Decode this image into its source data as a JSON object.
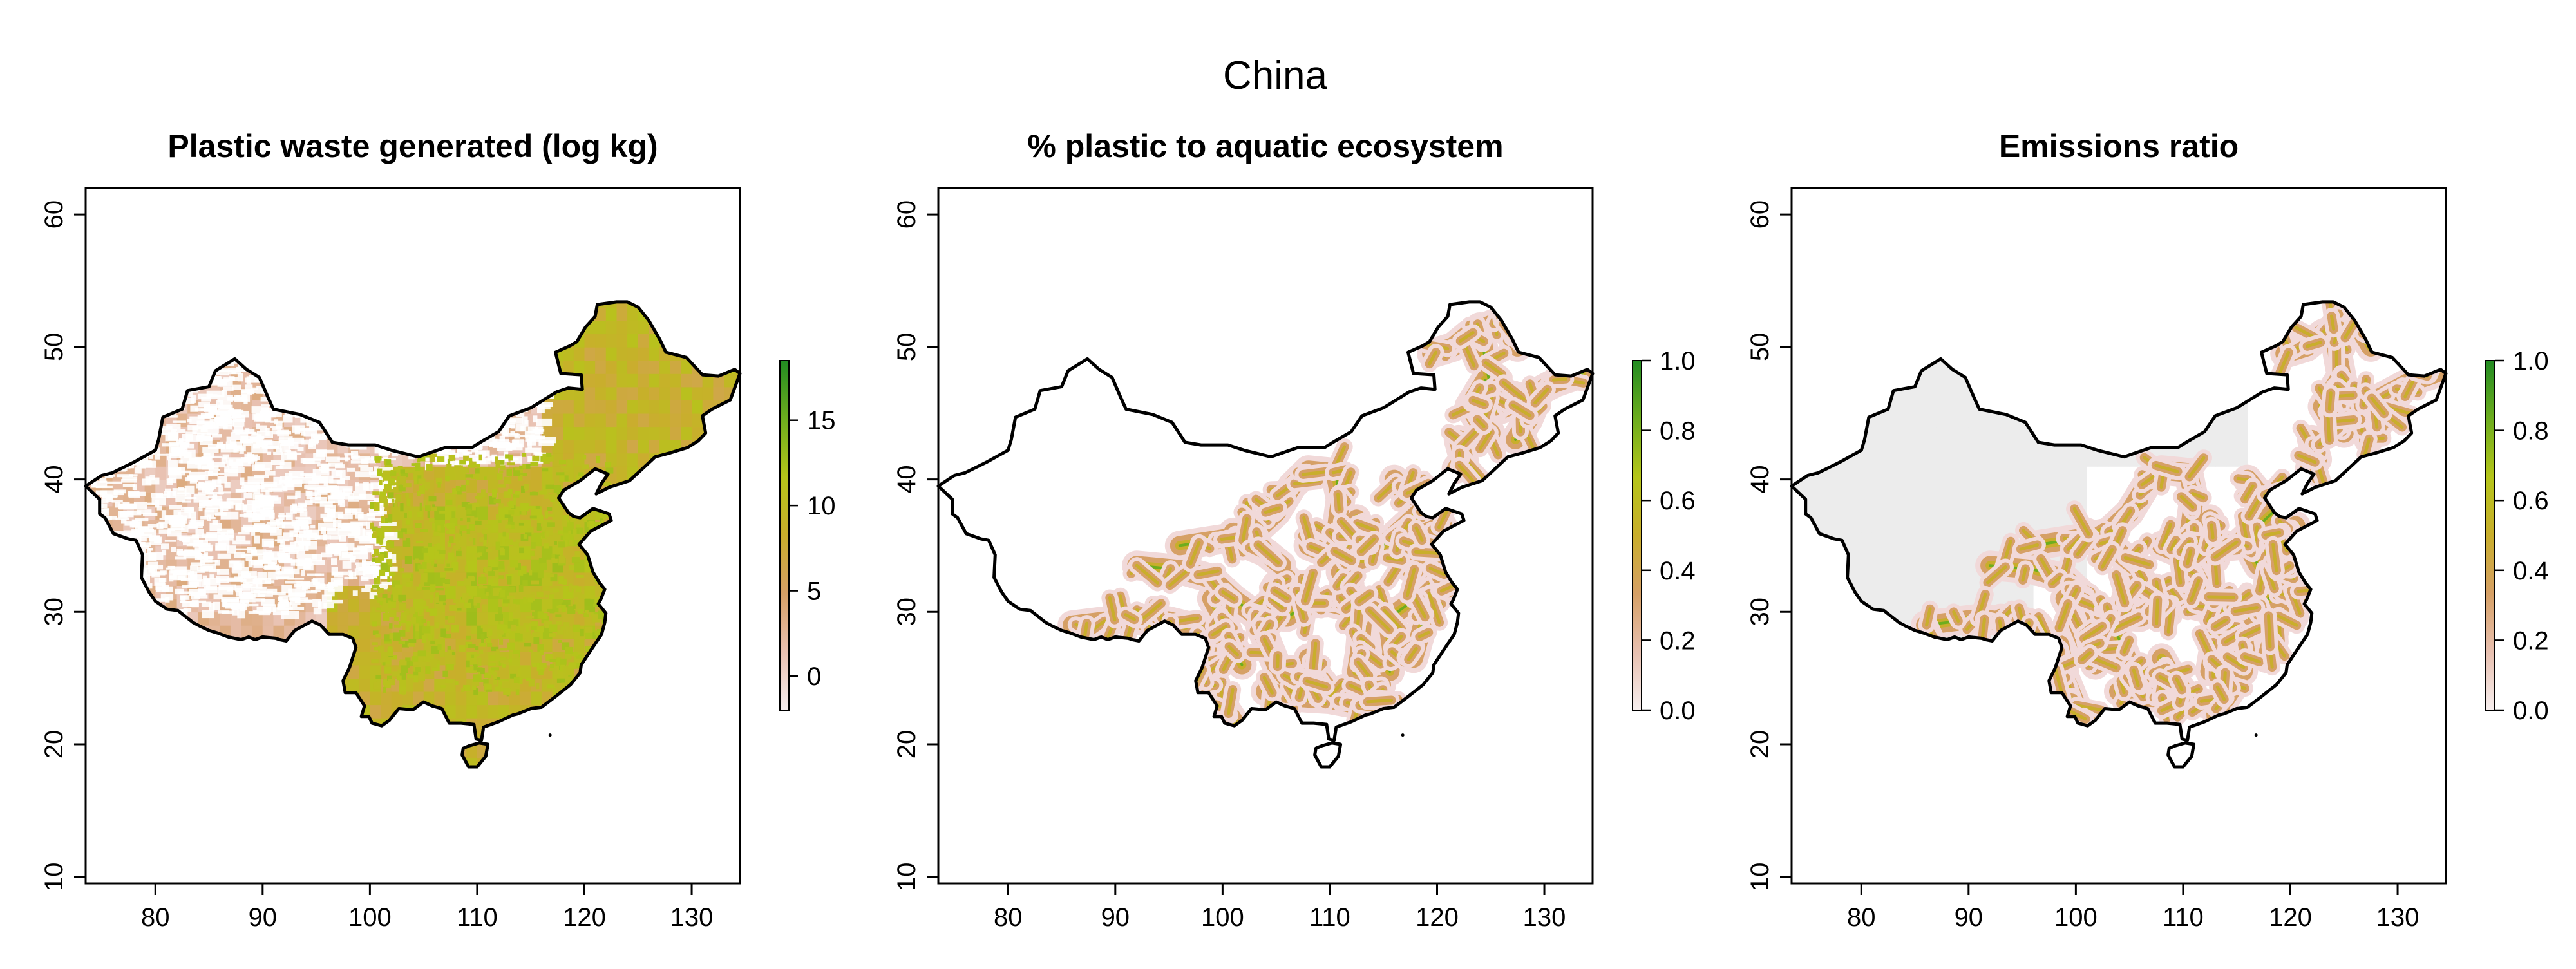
{
  "figure": {
    "title": "China"
  },
  "axes": {
    "x_ticks": [
      "80",
      "90",
      "100",
      "110",
      "120",
      "130"
    ],
    "y_ticks": [
      "10",
      "20",
      "30",
      "40",
      "50",
      "60"
    ]
  },
  "panels": [
    {
      "title": "Plastic waste generated (log kg)",
      "legend": {
        "ticks": [
          "0",
          "5",
          "10",
          "15"
        ],
        "range": [
          -2,
          18.5
        ]
      },
      "style": "waste"
    },
    {
      "title": "% plastic to aquatic ecosystem",
      "legend": {
        "ticks": [
          "0.0",
          "0.2",
          "0.4",
          "0.6",
          "0.8",
          "1.0"
        ],
        "range": [
          0,
          1
        ]
      },
      "style": "rivers"
    },
    {
      "title": "Emissions ratio",
      "legend": {
        "ticks": [
          "0.0",
          "0.2",
          "0.4",
          "0.6",
          "0.8",
          "1.0"
        ],
        "range": [
          0,
          1
        ]
      },
      "style": "emissions"
    }
  ],
  "colors": {
    "ramp": [
      "#f6eeee",
      "#e8c0b0",
      "#d6a066",
      "#c9ae2c",
      "#b5c51a",
      "#6dad1e",
      "#228b22"
    ],
    "outline": "#000000",
    "background": "#ffffff"
  },
  "map": {
    "xlim": [
      73.5,
      134.5
    ],
    "ylim": [
      9.5,
      62
    ],
    "china_outline": [
      [
        73.5,
        39.5
      ],
      [
        75.0,
        40.3
      ],
      [
        76.0,
        40.5
      ],
      [
        78.0,
        41.3
      ],
      [
        80.0,
        42.2
      ],
      [
        80.3,
        43.0
      ],
      [
        80.7,
        44.7
      ],
      [
        82.5,
        45.3
      ],
      [
        83.0,
        46.7
      ],
      [
        85.0,
        47.0
      ],
      [
        85.6,
        48.2
      ],
      [
        87.4,
        49.1
      ],
      [
        88.5,
        48.3
      ],
      [
        89.7,
        47.7
      ],
      [
        90.5,
        46.2
      ],
      [
        91.0,
        45.3
      ],
      [
        93.5,
        44.9
      ],
      [
        95.3,
        44.3
      ],
      [
        96.5,
        42.8
      ],
      [
        98.0,
        42.6
      ],
      [
        100.5,
        42.6
      ],
      [
        102.0,
        42.2
      ],
      [
        104.5,
        41.7
      ],
      [
        107.0,
        42.4
      ],
      [
        109.5,
        42.4
      ],
      [
        110.5,
        42.9
      ],
      [
        112.0,
        43.6
      ],
      [
        113.0,
        44.8
      ],
      [
        115.0,
        45.4
      ],
      [
        117.4,
        46.6
      ],
      [
        118.5,
        46.9
      ],
      [
        119.8,
        46.8
      ],
      [
        119.7,
        47.9
      ],
      [
        117.8,
        48.0
      ],
      [
        117.3,
        49.6
      ],
      [
        118.7,
        50.1
      ],
      [
        119.3,
        50.4
      ],
      [
        120.1,
        51.5
      ],
      [
        121.0,
        52.3
      ],
      [
        121.2,
        53.2
      ],
      [
        123.0,
        53.4
      ],
      [
        124.0,
        53.4
      ],
      [
        125.0,
        53.0
      ],
      [
        126.0,
        52.0
      ],
      [
        127.0,
        50.6
      ],
      [
        127.6,
        49.6
      ],
      [
        129.5,
        49.2
      ],
      [
        131.0,
        47.9
      ],
      [
        132.5,
        47.8
      ],
      [
        134.0,
        48.3
      ],
      [
        134.5,
        48.0
      ],
      [
        133.6,
        46.0
      ],
      [
        131.9,
        45.3
      ],
      [
        131.0,
        44.8
      ],
      [
        131.3,
        43.5
      ],
      [
        130.6,
        42.9
      ],
      [
        129.6,
        42.4
      ],
      [
        128.0,
        42.0
      ],
      [
        126.6,
        41.7
      ],
      [
        125.0,
        40.5
      ],
      [
        124.2,
        39.9
      ],
      [
        122.3,
        39.4
      ],
      [
        121.1,
        38.9
      ],
      [
        121.6,
        39.7
      ],
      [
        122.2,
        40.4
      ],
      [
        121.0,
        40.8
      ],
      [
        119.6,
        39.9
      ],
      [
        118.1,
        39.2
      ],
      [
        117.6,
        38.6
      ],
      [
        118.5,
        37.5
      ],
      [
        119.0,
        37.2
      ],
      [
        119.6,
        37.1
      ],
      [
        120.8,
        37.8
      ],
      [
        122.3,
        37.4
      ],
      [
        122.5,
        36.9
      ],
      [
        120.6,
        36.1
      ],
      [
        119.5,
        35.1
      ],
      [
        120.3,
        34.3
      ],
      [
        120.8,
        33.0
      ],
      [
        121.4,
        32.2
      ],
      [
        121.9,
        31.7
      ],
      [
        121.5,
        30.9
      ],
      [
        121.3,
        30.6
      ],
      [
        122.0,
        29.9
      ],
      [
        121.9,
        29.2
      ],
      [
        121.6,
        28.3
      ],
      [
        120.6,
        27.1
      ],
      [
        119.7,
        26.0
      ],
      [
        119.6,
        25.4
      ],
      [
        118.7,
        24.5
      ],
      [
        117.3,
        23.6
      ],
      [
        116.0,
        22.8
      ],
      [
        115.0,
        22.7
      ],
      [
        113.8,
        22.3
      ],
      [
        113.3,
        22.2
      ],
      [
        112.0,
        21.7
      ],
      [
        110.6,
        21.3
      ],
      [
        110.4,
        20.3
      ],
      [
        109.9,
        20.4
      ],
      [
        109.7,
        21.5
      ],
      [
        108.5,
        21.6
      ],
      [
        107.4,
        21.6
      ],
      [
        106.7,
        22.7
      ],
      [
        105.8,
        22.9
      ],
      [
        105.0,
        23.2
      ],
      [
        104.0,
        22.6
      ],
      [
        102.7,
        22.7
      ],
      [
        101.8,
        21.8
      ],
      [
        101.1,
        21.4
      ],
      [
        100.2,
        21.6
      ],
      [
        99.9,
        22.1
      ],
      [
        99.2,
        22.1
      ],
      [
        99.5,
        22.9
      ],
      [
        98.7,
        23.9
      ],
      [
        97.7,
        23.9
      ],
      [
        97.5,
        24.8
      ],
      [
        98.1,
        25.8
      ],
      [
        98.7,
        27.3
      ],
      [
        98.4,
        28.0
      ],
      [
        97.5,
        28.3
      ],
      [
        96.2,
        28.3
      ],
      [
        95.4,
        29.0
      ],
      [
        94.6,
        29.3
      ],
      [
        93.0,
        28.6
      ],
      [
        92.2,
        27.8
      ],
      [
        91.6,
        27.9
      ],
      [
        91.2,
        28.0
      ],
      [
        90.0,
        28.1
      ],
      [
        89.3,
        27.9
      ],
      [
        88.7,
        28.1
      ],
      [
        88.0,
        27.9
      ],
      [
        86.8,
        28.1
      ],
      [
        85.8,
        28.4
      ],
      [
        85.0,
        28.6
      ],
      [
        84.2,
        28.9
      ],
      [
        83.5,
        29.2
      ],
      [
        82.1,
        30.1
      ],
      [
        81.1,
        30.2
      ],
      [
        80.0,
        30.8
      ],
      [
        79.4,
        31.5
      ],
      [
        78.7,
        32.6
      ],
      [
        78.8,
        34.3
      ],
      [
        78.2,
        35.4
      ],
      [
        77.5,
        35.5
      ],
      [
        76.1,
        35.9
      ],
      [
        75.3,
        37.1
      ],
      [
        74.8,
        37.4
      ],
      [
        74.8,
        38.5
      ],
      [
        73.5,
        39.5
      ]
    ],
    "hainan": [
      [
        108.6,
        19.2
      ],
      [
        109.2,
        18.3
      ],
      [
        110.0,
        18.3
      ],
      [
        110.8,
        19.1
      ],
      [
        111.0,
        20.0
      ],
      [
        110.2,
        20.1
      ],
      [
        109.3,
        19.9
      ],
      [
        108.7,
        19.7
      ],
      [
        108.6,
        19.2
      ]
    ]
  }
}
